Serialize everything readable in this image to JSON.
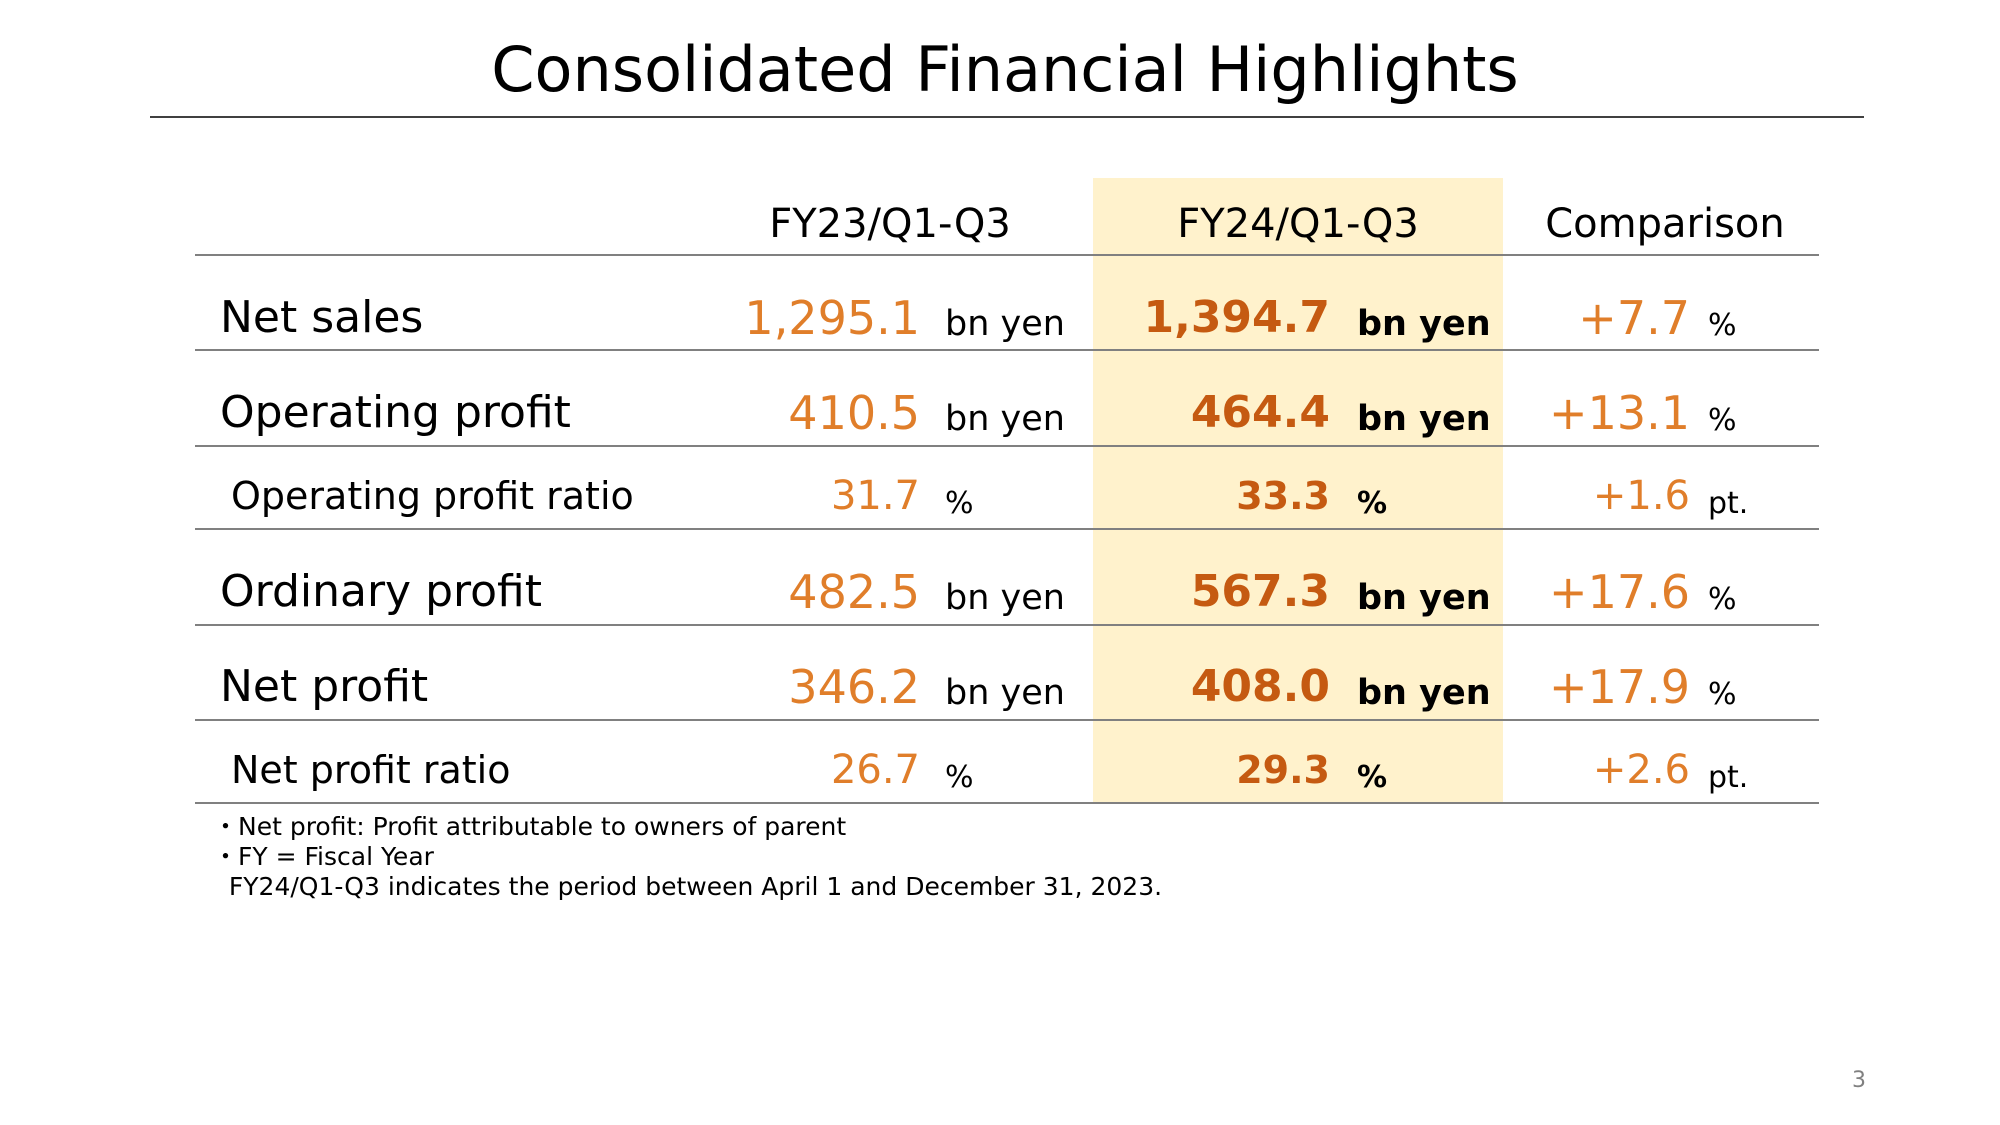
{
  "title": "Consolidated Financial Highlights",
  "columns": {
    "fy23": "FY23/Q1-Q3",
    "fy24": "FY24/Q1-Q3",
    "comparison": "Comparison"
  },
  "rows": [
    {
      "label": "Net sales",
      "fy23": "1,295.1",
      "fy23_unit": "bn yen",
      "fy24": "1,394.7",
      "fy24_unit": "bn yen",
      "comparison": "+7.7",
      "comparison_unit": "%"
    },
    {
      "label": "Operating profit",
      "fy23": "410.5",
      "fy23_unit": "bn yen",
      "fy24": "464.4",
      "fy24_unit": "bn yen",
      "comparison": "+13.1",
      "comparison_unit": "%"
    },
    {
      "label": "Operating profit ratio",
      "fy23": "31.7",
      "fy23_unit": "%",
      "fy24": "33.3",
      "fy24_unit": "%",
      "comparison": "+1.6",
      "comparison_unit": "pt."
    },
    {
      "label": "Ordinary profit",
      "fy23": "482.5",
      "fy23_unit": "bn yen",
      "fy24": "567.3",
      "fy24_unit": "bn yen",
      "comparison": "+17.6",
      "comparison_unit": "%"
    },
    {
      "label": "Net profit",
      "fy23": "346.2",
      "fy23_unit": "bn yen",
      "fy24": "408.0",
      "fy24_unit": "bn yen",
      "comparison": "+17.9",
      "comparison_unit": "%"
    },
    {
      "label": "Net profit ratio",
      "fy23": "26.7",
      "fy23_unit": "%",
      "fy24": "29.3",
      "fy24_unit": "%",
      "comparison": "+2.6",
      "comparison_unit": "pt."
    }
  ],
  "notes": [
    "・Net profit: Profit attributable to owners of parent",
    "・FY = Fiscal Year",
    "  FY24/Q1-Q3 indicates the period between April 1 and December 31, 2023."
  ],
  "page_number": "3",
  "colors": {
    "fy23_value": "#e07e2a",
    "fy24_value": "#c55a11",
    "highlight_fill": "#fff2cc",
    "rule": "#808080"
  }
}
